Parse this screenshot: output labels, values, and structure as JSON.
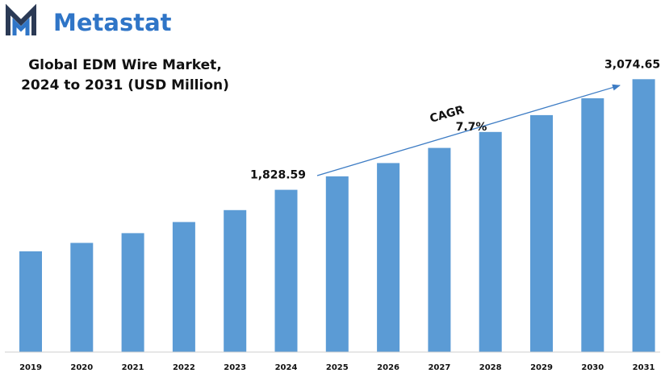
{
  "brand": {
    "name": "Metastat",
    "logo_icon": "metastat-m-logo",
    "logo_color_dark": "#2b3a55",
    "logo_color_light": "#2f75c7"
  },
  "chart_data": {
    "type": "bar",
    "title_lines": [
      "Global EDM Wire Market,",
      "2024 to 2031 (USD Million)"
    ],
    "categories": [
      "2019",
      "2020",
      "2021",
      "2022",
      "2023",
      "2024",
      "2025",
      "2026",
      "2027",
      "2028",
      "2029",
      "2030",
      "2031"
    ],
    "values": [
      1135,
      1230,
      1340,
      1465,
      1600,
      1828.59,
      1980,
      2130,
      2300,
      2480,
      2670,
      2860,
      3074.65
    ],
    "data_labels": [
      {
        "category": "2024",
        "text": "1,828.59"
      },
      {
        "category": "2031",
        "text": "3,074.65"
      }
    ],
    "annotation": {
      "label": "CAGR",
      "value": "7.7%"
    },
    "bar_color": "#5b9bd5",
    "arrow_color": "#3d7cc4",
    "xlabel": "",
    "ylabel": "",
    "ylim": [
      0,
      3250
    ],
    "grid": false,
    "legend": "none"
  }
}
